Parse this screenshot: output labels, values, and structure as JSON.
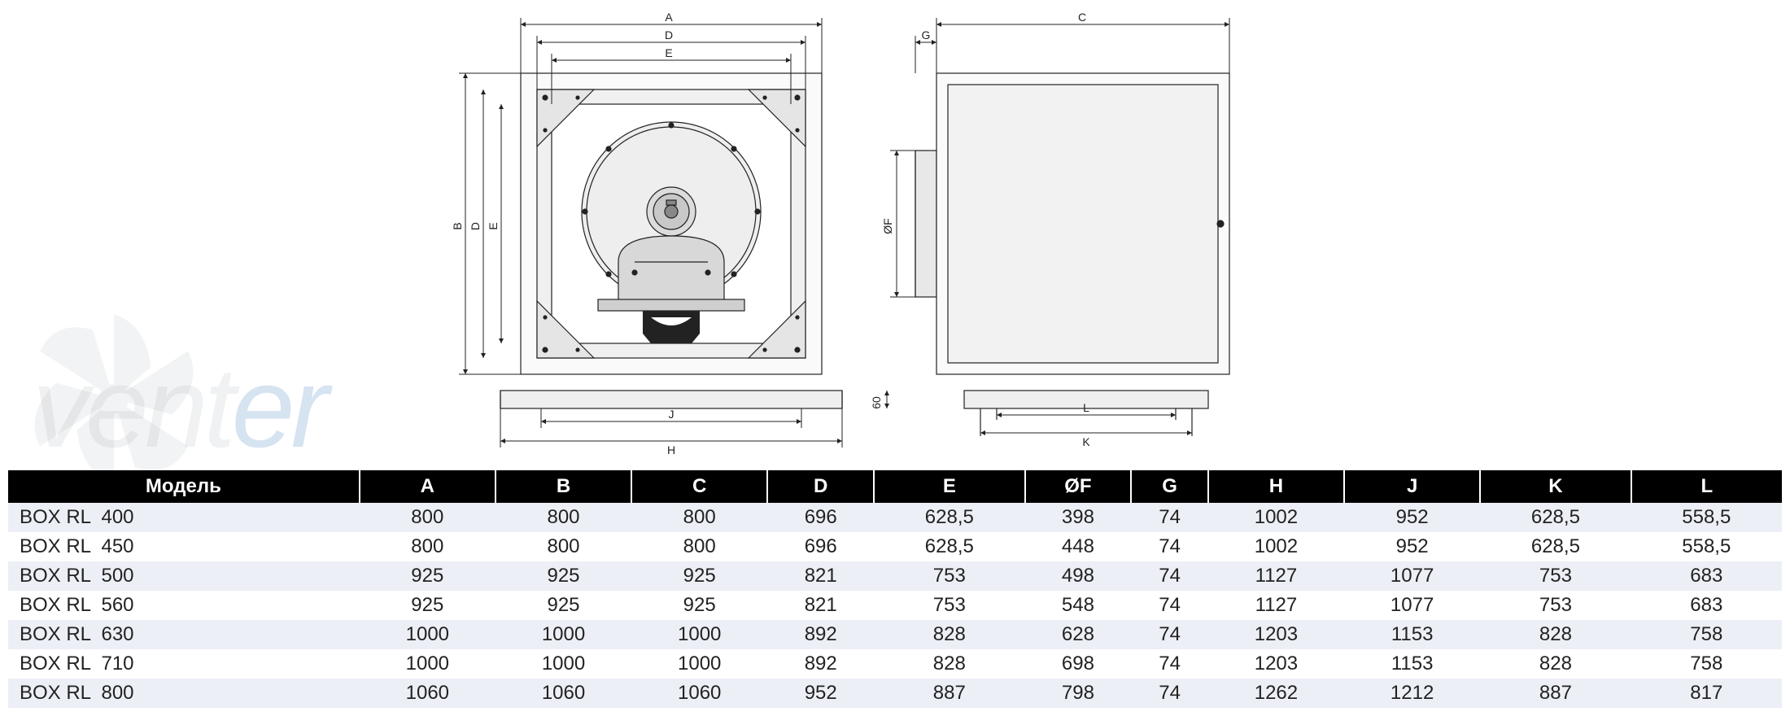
{
  "diagram": {
    "labels": {
      "A": "A",
      "B": "B",
      "C": "C",
      "D": "D",
      "E": "E",
      "F": "ØF",
      "G": "G",
      "H": "H",
      "J": "J",
      "K": "K",
      "L": "L",
      "sixty": "60"
    },
    "stroke_color": "#222222",
    "fill_light": "#f5f5f5",
    "fill_mid": "#d0d0d0",
    "fill_dark": "#b0b0b0"
  },
  "watermark": {
    "text_main": "vent",
    "text_accent": "er",
    "fan_color": "#9aa5aa"
  },
  "table": {
    "header_bg": "#000000",
    "header_fg": "#ffffff",
    "row_even_bg": "#eceff5",
    "row_odd_bg": "#ffffff",
    "font_size": 24,
    "columns": [
      "Модель",
      "A",
      "B",
      "C",
      "D",
      "E",
      "ØF",
      "G",
      "H",
      "J",
      "K",
      "L"
    ],
    "rows": [
      [
        "BOX RL  400",
        "800",
        "800",
        "800",
        "696",
        "628,5",
        "398",
        "74",
        "1002",
        "952",
        "628,5",
        "558,5"
      ],
      [
        "BOX RL  450",
        "800",
        "800",
        "800",
        "696",
        "628,5",
        "448",
        "74",
        "1002",
        "952",
        "628,5",
        "558,5"
      ],
      [
        "BOX RL  500",
        "925",
        "925",
        "925",
        "821",
        "753",
        "498",
        "74",
        "1127",
        "1077",
        "753",
        "683"
      ],
      [
        "BOX RL  560",
        "925",
        "925",
        "925",
        "821",
        "753",
        "548",
        "74",
        "1127",
        "1077",
        "753",
        "683"
      ],
      [
        "BOX RL  630",
        "1000",
        "1000",
        "1000",
        "892",
        "828",
        "628",
        "74",
        "1203",
        "1153",
        "828",
        "758"
      ],
      [
        "BOX RL  710",
        "1000",
        "1000",
        "1000",
        "892",
        "828",
        "698",
        "74",
        "1203",
        "1153",
        "828",
        "758"
      ],
      [
        "BOX RL  800",
        "1060",
        "1060",
        "1060",
        "952",
        "887",
        "798",
        "74",
        "1262",
        "1212",
        "887",
        "817"
      ]
    ]
  }
}
